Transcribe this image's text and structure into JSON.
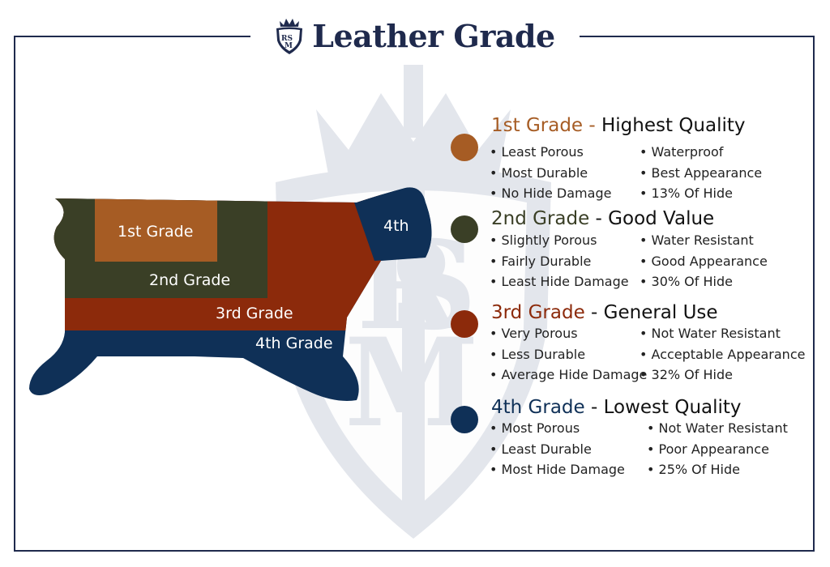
{
  "title": "Leather Grade",
  "logo": {
    "monogram": "RSM",
    "icon": "crest-logo-icon"
  },
  "colors": {
    "navy": "#1f2a4d",
    "grade1": "#a65c24",
    "grade2": "#3a3f26",
    "grade3": "#8c2a0b",
    "grade4": "#0f3057",
    "watermark": "#e3e6ec"
  },
  "hide_labels": {
    "grade1": "1st Grade",
    "grade2": "2nd Grade",
    "grade3": "3rd Grade",
    "grade4": "4th Grade",
    "grade4_top": "4th"
  },
  "grades": [
    {
      "name": "1st Grade",
      "quality": "Highest Quality",
      "left": [
        "• Least Porous",
        "• Most Durable",
        "• No Hide Damage"
      ],
      "right": [
        "• Waterproof",
        "• Best Appearance",
        "• 13% Of Hide"
      ]
    },
    {
      "name": "2nd Grade",
      "quality": "Good Value",
      "left": [
        "• Slightly Porous",
        "• Fairly Durable",
        "• Least Hide Damage"
      ],
      "right": [
        "• Water Resistant",
        "• Good Appearance",
        "• 30% Of Hide"
      ]
    },
    {
      "name": "3rd Grade",
      "quality": "General Use",
      "left": [
        "• Very Porous",
        "• Less Durable",
        "• Average Hide Damage"
      ],
      "right": [
        "• Not Water Resistant",
        "• Acceptable Appearance",
        "• 32% Of Hide"
      ]
    },
    {
      "name": "4th Grade",
      "quality": "Lowest Quality",
      "left": [
        "• Most Porous",
        "• Least Durable",
        "• Most Hide Damage"
      ],
      "right": [
        "• Not Water Resistant",
        "• Poor Appearance",
        "• 25% Of Hide"
      ]
    }
  ]
}
